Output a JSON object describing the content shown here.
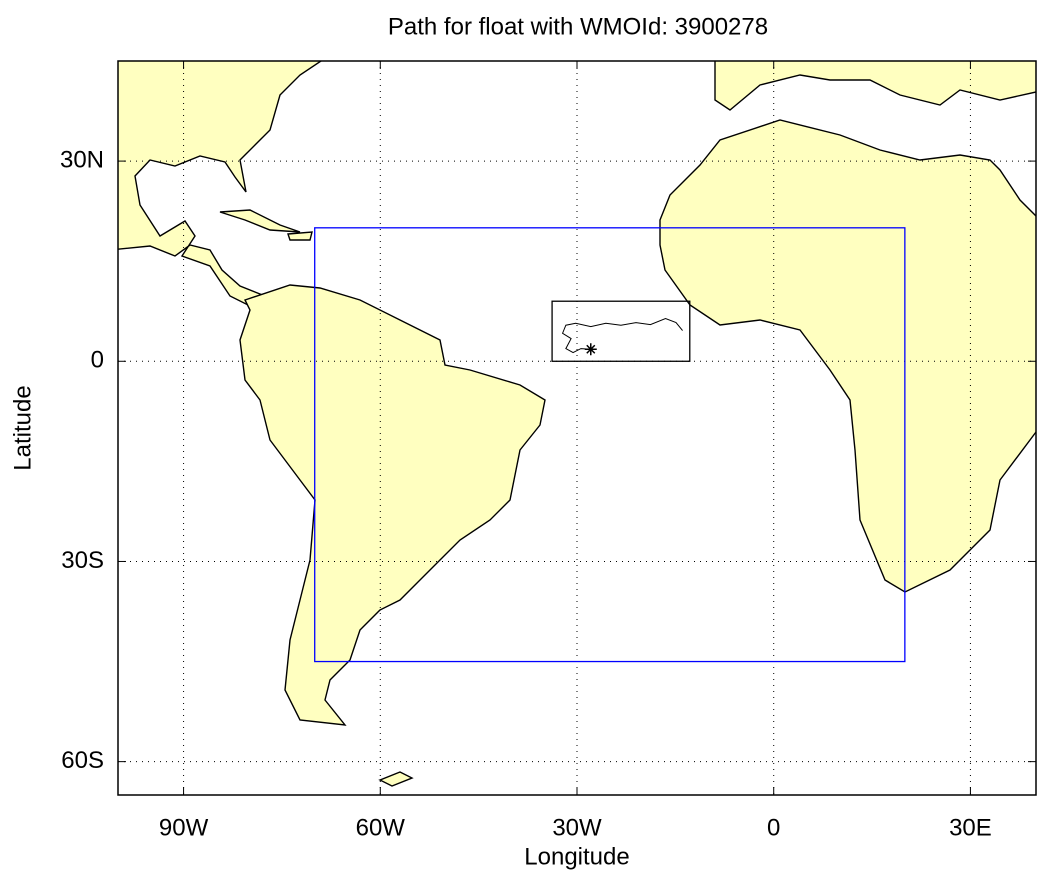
{
  "chart_data": {
    "type": "track",
    "title": "Path for float with WMOId: 3900278",
    "x_label": "Longitude",
    "y_label": "Latitude",
    "xlim": [
      -100,
      40
    ],
    "ylim": [
      -65,
      45
    ],
    "xticks": [
      {
        "value": -90,
        "label": "90W"
      },
      {
        "value": -60,
        "label": "60W"
      },
      {
        "value": -30,
        "label": "30W"
      },
      0,
      {
        "value": 30,
        "label": "30E"
      }
    ],
    "yticks": [
      {
        "value": 30,
        "label": "30N"
      },
      0,
      {
        "value": -30,
        "label": "30S"
      },
      {
        "value": -60,
        "label": "60S"
      }
    ],
    "grid": true,
    "region": {
      "xlim": [
        -70,
        20
      ],
      "ylim": [
        -45,
        20
      ],
      "color": "#0000ff"
    },
    "path_box": {
      "xlim": [
        -33.8,
        -12.8
      ],
      "ylim": [
        0,
        9
      ],
      "color": "#000000"
    },
    "track": {
      "color": "#000000",
      "x": [
        -13.9,
        -14.9,
        -16.5,
        -18.8,
        -21.0,
        -23.3,
        -25.6,
        -27.9,
        -30.2,
        -31.7,
        -32.2,
        -30.9,
        -31.7,
        -30.6,
        -29.4,
        -27.9
      ],
      "y": [
        4.6,
        5.8,
        6.4,
        5.5,
        5.8,
        5.4,
        5.7,
        5.2,
        5.7,
        5.4,
        4.2,
        3.4,
        1.9,
        1.3,
        1.9,
        1.8
      ]
    }
  }
}
